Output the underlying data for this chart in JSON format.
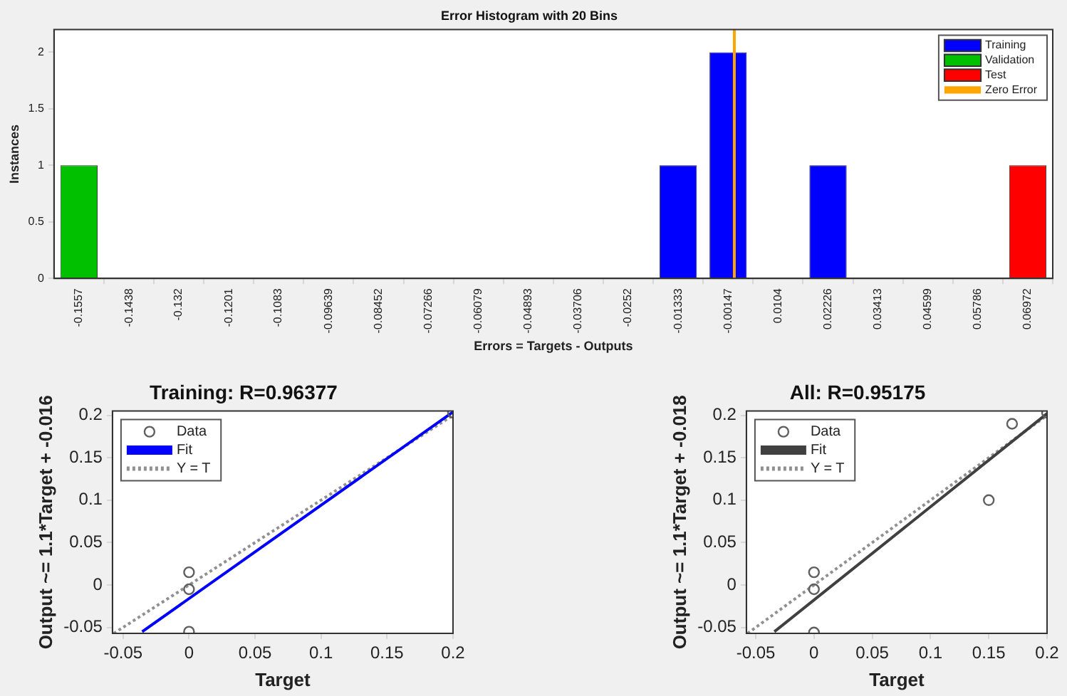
{
  "chart_data": [
    {
      "type": "bar",
      "title": "Error Histogram with 20 Bins",
      "xlabel": "Errors = Targets - Outputs",
      "ylabel": "Instances",
      "x": [
        -0.1557,
        -0.1438,
        -0.132,
        -0.1201,
        -0.1083,
        -0.09639,
        -0.08452,
        -0.07266,
        -0.06079,
        -0.04893,
        -0.03706,
        -0.0252,
        -0.01333,
        -0.00147,
        0.0104,
        0.02226,
        0.03413,
        0.04599,
        0.05786,
        0.06972
      ],
      "series": [
        {
          "name": "Training",
          "color": "#0000ff",
          "values": [
            0,
            0,
            0,
            0,
            0,
            0,
            0,
            0,
            0,
            0,
            0,
            0,
            1,
            2,
            0,
            1,
            0,
            0,
            0,
            0
          ]
        },
        {
          "name": "Validation",
          "color": "#00c000",
          "values": [
            1,
            0,
            0,
            0,
            0,
            0,
            0,
            0,
            0,
            0,
            0,
            0,
            0,
            0,
            0,
            0,
            0,
            0,
            0,
            0
          ]
        },
        {
          "name": "Test",
          "color": "#ff0000",
          "values": [
            0,
            0,
            0,
            0,
            0,
            0,
            0,
            0,
            0,
            0,
            0,
            0,
            0,
            0,
            0,
            0,
            0,
            0,
            0,
            1
          ]
        },
        {
          "name": "Zero Error",
          "type": "line",
          "color": "#ffa500",
          "x": [
            0,
            0
          ],
          "values": [
            0,
            2.2
          ]
        }
      ],
      "stacked": true,
      "xlim": [
        -0.16163,
        0.07565
      ],
      "xticks": [
        -0.1557,
        -0.1438,
        -0.132,
        -0.1201,
        -0.1083,
        -0.09639,
        -0.08452,
        -0.07266,
        -0.06079,
        -0.04893,
        -0.03706,
        -0.0252,
        -0.01333,
        -0.00147,
        0.0104,
        0.02226,
        0.03413,
        0.04599,
        0.05786,
        0.06972
      ],
      "ylim": [
        0,
        2.2
      ],
      "yticks": [
        0,
        0.5,
        1,
        1.5,
        2
      ],
      "legend": "top right",
      "grid": false
    },
    {
      "type": "scatter",
      "title": "Training: R=0.96377",
      "xlabel": "Target",
      "ylabel": "Output ~= 1.1*Target + -0.016",
      "series": [
        {
          "name": "Data",
          "type": "scatter",
          "marker": "circle",
          "color": "#606060",
          "x": [
            0,
            0,
            0,
            0.2
          ],
          "values": [
            0.015,
            -0.005,
            -0.055,
            0.203
          ]
        },
        {
          "name": "Fit",
          "type": "line",
          "marker": "none",
          "color": "#0000ff",
          "x": [
            -0.0355,
            0.2
          ],
          "values": [
            -0.055,
            0.204
          ]
        },
        {
          "name": "Y = T",
          "type": "line",
          "marker": "none",
          "line_style": "dotted",
          "color": "#909090",
          "x": [
            -0.057,
            0.2
          ],
          "values": [
            -0.057,
            0.2
          ]
        }
      ],
      "xlim": [
        -0.058,
        0.2
      ],
      "xticks": [
        -0.05,
        0,
        0.05,
        0.1,
        0.15,
        0.2
      ],
      "ylim": [
        -0.057,
        0.205
      ],
      "yticks": [
        -0.05,
        0,
        0.05,
        0.1,
        0.15,
        0.2
      ],
      "legend": "top left",
      "grid": false
    },
    {
      "type": "scatter",
      "title": "All: R=0.95175",
      "xlabel": "Target",
      "ylabel": "Output ~= 1.1*Target + -0.018",
      "series": [
        {
          "name": "Data",
          "type": "scatter",
          "marker": "circle",
          "color": "#606060",
          "x": [
            0,
            0,
            0,
            0.15,
            0.17,
            0.2
          ],
          "values": [
            0.015,
            -0.005,
            -0.056,
            0.1,
            0.19,
            0.203
          ]
        },
        {
          "name": "Fit",
          "type": "line",
          "marker": "none",
          "color": "#404040",
          "x": [
            -0.034,
            0.2
          ],
          "values": [
            -0.055,
            0.202
          ]
        },
        {
          "name": "Y = T",
          "type": "line",
          "marker": "none",
          "line_style": "dotted",
          "color": "#909090",
          "x": [
            -0.057,
            0.2
          ],
          "values": [
            -0.057,
            0.2
          ]
        }
      ],
      "xlim": [
        -0.058,
        0.2
      ],
      "xticks": [
        -0.05,
        0,
        0.05,
        0.1,
        0.15,
        0.2
      ],
      "ylim": [
        -0.057,
        0.205
      ],
      "yticks": [
        -0.05,
        0,
        0.05,
        0.1,
        0.15,
        0.2
      ],
      "legend": "top left",
      "grid": false
    }
  ]
}
